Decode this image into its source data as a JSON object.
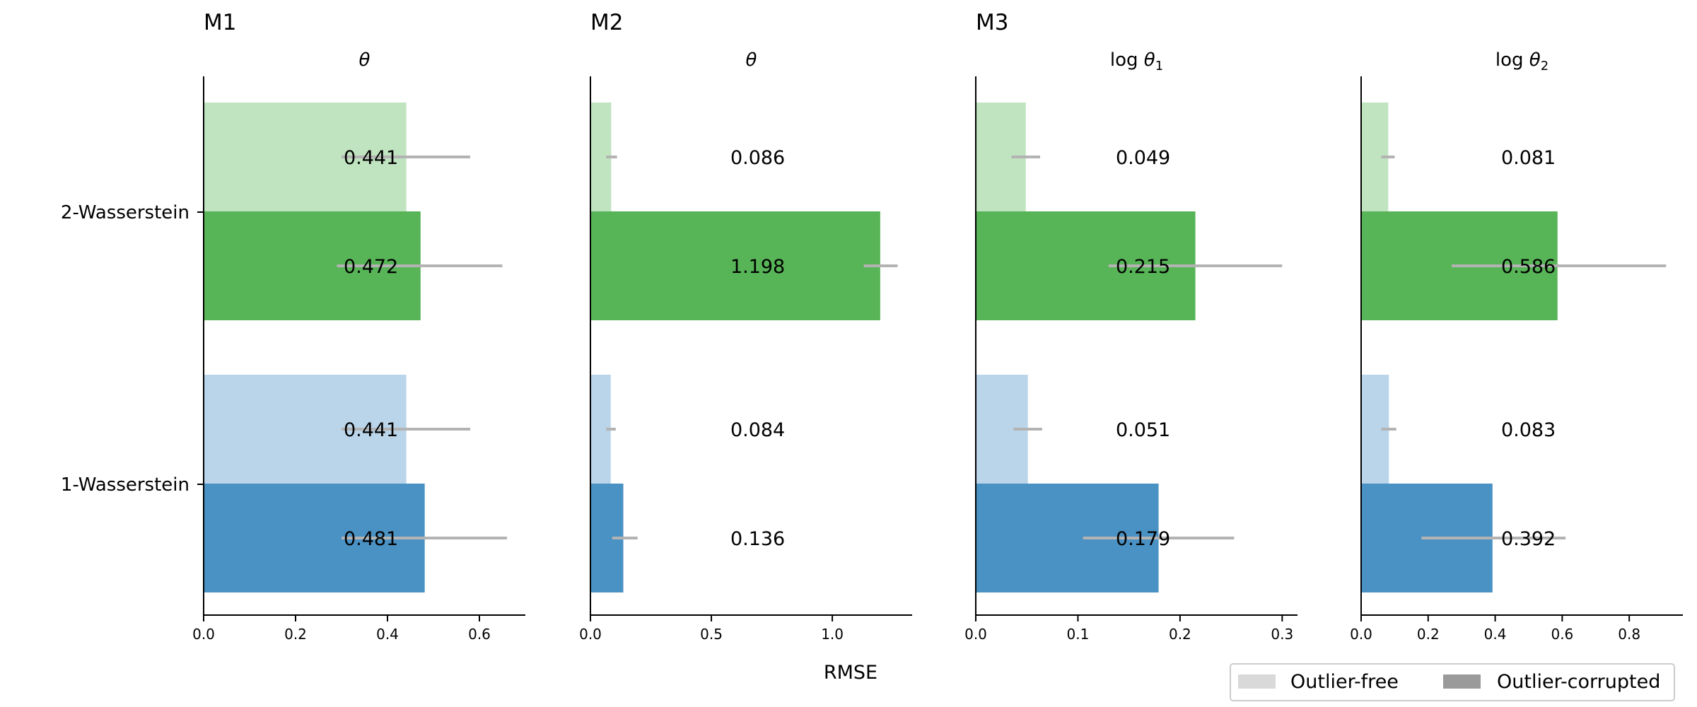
{
  "chart_data": {
    "type": "bar",
    "orientation": "horizontal",
    "xlabel": "RMSE",
    "categories": [
      "2-Wasserstein",
      "1-Wasserstein"
    ],
    "conditions": [
      "Outlier-free",
      "Outlier-corrupted"
    ],
    "colors": {
      "2-Wasserstein": {
        "Outlier-free": "#c0e4c0",
        "Outlier-corrupted": "#57b457"
      },
      "1-Wasserstein": {
        "Outlier-free": "#bad5ea",
        "Outlier-corrupted": "#4a91c4"
      },
      "legend": {
        "Outlier-free": "#d9d9d9",
        "Outlier-corrupted": "#9a9a9a"
      },
      "error": "#b3b3b3"
    },
    "panels": [
      {
        "model": "M1",
        "param": "θ",
        "xlim": [
          0,
          0.7
        ],
        "xticks": [
          0,
          0.2,
          0.4,
          0.6
        ],
        "xtick_labels": [
          "0.0",
          "0.2",
          "0.4",
          "0.6"
        ],
        "bars": [
          {
            "category": "2-Wasserstein",
            "condition": "Outlier-free",
            "value": 0.441,
            "label": "0.441",
            "err": [
              0.3,
              0.58
            ]
          },
          {
            "category": "2-Wasserstein",
            "condition": "Outlier-corrupted",
            "value": 0.472,
            "label": "0.472",
            "err": [
              0.29,
              0.65
            ]
          },
          {
            "category": "1-Wasserstein",
            "condition": "Outlier-free",
            "value": 0.441,
            "label": "0.441",
            "err": [
              0.3,
              0.58
            ]
          },
          {
            "category": "1-Wasserstein",
            "condition": "Outlier-corrupted",
            "value": 0.481,
            "label": "0.481",
            "err": [
              0.3,
              0.66
            ]
          }
        ]
      },
      {
        "model": "M2",
        "param": "θ",
        "xlim": [
          0,
          1.33
        ],
        "xticks": [
          0,
          0.5,
          1.0
        ],
        "xtick_labels": [
          "0.0",
          "0.5",
          "1.0"
        ],
        "bars": [
          {
            "category": "2-Wasserstein",
            "condition": "Outlier-free",
            "value": 0.086,
            "label": "0.086",
            "err": [
              0.065,
              0.11
            ]
          },
          {
            "category": "2-Wasserstein",
            "condition": "Outlier-corrupted",
            "value": 1.198,
            "label": "1.198",
            "err": [
              1.13,
              1.27
            ]
          },
          {
            "category": "1-Wasserstein",
            "condition": "Outlier-free",
            "value": 0.084,
            "label": "0.084",
            "err": [
              0.065,
              0.105
            ]
          },
          {
            "category": "1-Wasserstein",
            "condition": "Outlier-corrupted",
            "value": 0.136,
            "label": "0.136",
            "err": [
              0.09,
              0.195
            ]
          }
        ]
      },
      {
        "model": "M3",
        "param_prefix": "log",
        "param": "θ",
        "param_sub": "1",
        "xlim": [
          0,
          0.315
        ],
        "xticks": [
          0,
          0.1,
          0.2,
          0.3
        ],
        "xtick_labels": [
          "0.0",
          "0.1",
          "0.2",
          "0.3"
        ],
        "bars": [
          {
            "category": "2-Wasserstein",
            "condition": "Outlier-free",
            "value": 0.049,
            "label": "0.049",
            "err": [
              0.035,
              0.063
            ]
          },
          {
            "category": "2-Wasserstein",
            "condition": "Outlier-corrupted",
            "value": 0.215,
            "label": "0.215",
            "err": [
              0.13,
              0.3
            ]
          },
          {
            "category": "1-Wasserstein",
            "condition": "Outlier-free",
            "value": 0.051,
            "label": "0.051",
            "err": [
              0.037,
              0.065
            ]
          },
          {
            "category": "1-Wasserstein",
            "condition": "Outlier-corrupted",
            "value": 0.179,
            "label": "0.179",
            "err": [
              0.105,
              0.253
            ]
          }
        ]
      },
      {
        "model": "",
        "param_prefix": "log",
        "param": "θ",
        "param_sub": "2",
        "xlim": [
          0,
          0.96
        ],
        "xticks": [
          0,
          0.2,
          0.4,
          0.6,
          0.8
        ],
        "xtick_labels": [
          "0.0",
          "0.2",
          "0.4",
          "0.6",
          "0.8"
        ],
        "bars": [
          {
            "category": "2-Wasserstein",
            "condition": "Outlier-free",
            "value": 0.081,
            "label": "0.081",
            "err": [
              0.06,
              0.1
            ]
          },
          {
            "category": "2-Wasserstein",
            "condition": "Outlier-corrupted",
            "value": 0.586,
            "label": "0.586",
            "err": [
              0.27,
              0.91
            ]
          },
          {
            "category": "1-Wasserstein",
            "condition": "Outlier-free",
            "value": 0.083,
            "label": "0.083",
            "err": [
              0.06,
              0.105
            ]
          },
          {
            "category": "1-Wasserstein",
            "condition": "Outlier-corrupted",
            "value": 0.392,
            "label": "0.392",
            "err": [
              0.18,
              0.61
            ]
          }
        ]
      }
    ],
    "legend": {
      "placement": "bottom-right",
      "entries": [
        "Outlier-free",
        "Outlier-corrupted"
      ]
    }
  }
}
